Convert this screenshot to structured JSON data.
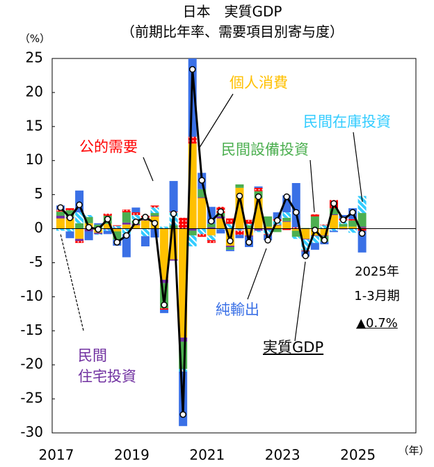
{
  "chart_data": {
    "type": "bar",
    "title": "日本　実質GDP",
    "subtitle": "（前期比年率、需要項目別寄与度）",
    "y_unit": "（%）",
    "x_unit": "（年）",
    "categories": [
      "2017",
      null,
      null,
      null,
      null,
      null,
      null,
      null,
      "2019",
      null,
      null,
      null,
      null,
      null,
      null,
      null,
      "2021",
      null,
      null,
      null,
      null,
      null,
      null,
      null,
      "2023",
      null,
      null,
      null,
      null,
      null,
      null,
      null,
      "2025"
    ],
    "ylim": [
      -30,
      25
    ],
    "yticks": [
      25,
      20,
      15,
      10,
      5,
      0,
      -5,
      -10,
      -15,
      -20,
      -25,
      -30
    ],
    "series": [
      {
        "name": "個人消費",
        "color": "#ffc000",
        "values": [
          1.5,
          1.5,
          -1.5,
          0.8,
          -0.6,
          0.7,
          -0.4,
          0.6,
          0.5,
          1.2,
          1.8,
          -7.5,
          -4.5,
          -16.0,
          12.5,
          4.5,
          -1.0,
          1.5,
          -2.5,
          6.0,
          -1.0,
          4.5,
          0.3,
          0.5,
          1.0,
          -0.3,
          -1.5,
          -1.0,
          -1.0,
          2.0,
          0.3,
          0.3,
          0.1
        ]
      },
      {
        "name": "民間\n住宅投資",
        "color": "#7030a0",
        "values": [
          0.4,
          0.2,
          -0.3,
          -0.4,
          -0.2,
          -0.1,
          0.1,
          0.3,
          0.2,
          0.1,
          0.1,
          -0.5,
          -0.2,
          -0.6,
          -0.3,
          0.1,
          0.2,
          0.3,
          -0.2,
          -0.1,
          -0.2,
          -0.3,
          -0.2,
          0.1,
          0.1,
          0.0,
          -0.1,
          -0.1,
          -0.1,
          0.1,
          -0.1,
          0.0,
          0.2
        ]
      },
      {
        "name": "民間設備投資",
        "color": "#4caf50",
        "values": [
          0.6,
          1.0,
          0.8,
          0.9,
          0.6,
          1.2,
          -1.2,
          1.5,
          0.5,
          0.3,
          0.4,
          -3.7,
          0.5,
          -4.0,
          -0.7,
          1.2,
          0.5,
          0.5,
          -0.4,
          0.5,
          0.5,
          1.0,
          1.5,
          -0.5,
          0.5,
          -0.9,
          0.1,
          1.8,
          -0.8,
          0.9,
          0.4,
          0.9,
          2.0
        ]
      },
      {
        "name": "民間在庫投資",
        "color": "#33ccff",
        "pattern": "hatch",
        "values": [
          -0.3,
          -0.4,
          1.6,
          0.3,
          -0.1,
          -0.2,
          0.3,
          -0.8,
          0.8,
          -1.1,
          0.8,
          0.3,
          1.9,
          -0.4,
          -1.6,
          -0.8,
          -0.7,
          -0.1,
          0.7,
          -0.2,
          0.2,
          -0.2,
          -0.6,
          0.5,
          0.8,
          -0.3,
          -1.6,
          -1.0,
          0.5,
          -0.3,
          0.5,
          -0.6,
          2.5
        ]
      },
      {
        "name": "公的需要",
        "color": "#ff0000",
        "pattern": "dots",
        "values": [
          0.3,
          0.3,
          -0.3,
          0.0,
          0.0,
          0.3,
          0.1,
          0.4,
          0.4,
          0.3,
          0.3,
          -0.2,
          0.1,
          1.6,
          1.0,
          -0.4,
          -0.4,
          0.9,
          0.8,
          -0.6,
          0.6,
          0.5,
          -0.1,
          0.3,
          -0.2,
          0.2,
          -0.1,
          0.3,
          0.1,
          1.2,
          0.3,
          0.2,
          -0.3
        ]
      },
      {
        "name": "純輸出",
        "color": "#3a70e6",
        "values": [
          0.6,
          -1.0,
          3.2,
          -1.3,
          0.2,
          -0.5,
          -0.9,
          -3.4,
          0.7,
          -1.5,
          -1.3,
          -0.5,
          4.5,
          -8.0,
          12.0,
          2.4,
          2.5,
          -0.6,
          -0.2,
          -0.5,
          -1.5,
          0.2,
          -0.8,
          1.0,
          2.5,
          6.5,
          -0.8,
          -1.0,
          -0.4,
          -0.2,
          0.5,
          1.6,
          -3.2
        ]
      }
    ],
    "line": {
      "name": "実質GDP",
      "color": "#000000",
      "values": [
        3.1,
        1.6,
        3.5,
        0.2,
        -0.1,
        1.4,
        -2.0,
        -1.0,
        1.0,
        1.7,
        0.8,
        -11.2,
        2.2,
        -27.3,
        23.4,
        7.1,
        1.1,
        2.5,
        -1.8,
        4.8,
        -2.0,
        4.7,
        -1.7,
        1.2,
        4.7,
        2.4,
        -4.0,
        -0.2,
        -1.7,
        3.7,
        1.3,
        2.4,
        -0.7
      ]
    },
    "annotations": [
      "2025年",
      "1-3月期",
      "▲0.7%"
    ]
  }
}
